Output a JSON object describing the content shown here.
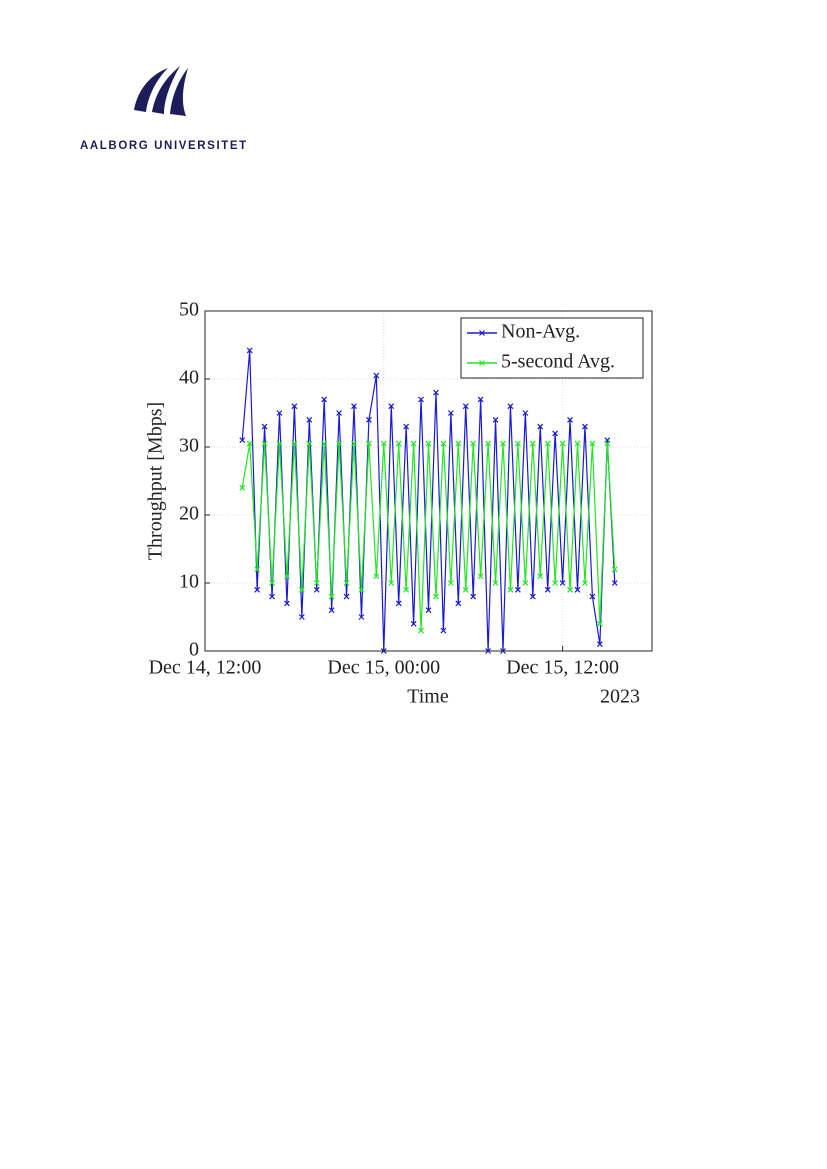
{
  "header": {
    "logo_text": "AALBORG UNIVERSITET"
  },
  "chart_data": {
    "type": "line",
    "ylabel": "Throughput [Mbps]",
    "xlabel": "Time",
    "x_year_label": "2023",
    "x": [
      "2023-12-14 14:30",
      "2023-12-14 15:00",
      "2023-12-14 15:30",
      "2023-12-14 16:00",
      "2023-12-14 16:30",
      "2023-12-14 17:00",
      "2023-12-14 17:30",
      "2023-12-14 18:00",
      "2023-12-14 18:30",
      "2023-12-14 19:00",
      "2023-12-14 19:30",
      "2023-12-14 20:00",
      "2023-12-14 20:30",
      "2023-12-14 21:00",
      "2023-12-14 21:30",
      "2023-12-14 22:00",
      "2023-12-14 22:30",
      "2023-12-14 23:00",
      "2023-12-14 23:30",
      "2023-12-15 00:00",
      "2023-12-15 00:30",
      "2023-12-15 01:00",
      "2023-12-15 01:30",
      "2023-12-15 02:00",
      "2023-12-15 02:30",
      "2023-12-15 03:00",
      "2023-12-15 03:30",
      "2023-12-15 04:00",
      "2023-12-15 04:30",
      "2023-12-15 05:00",
      "2023-12-15 05:30",
      "2023-12-15 06:00",
      "2023-12-15 06:30",
      "2023-12-15 07:00",
      "2023-12-15 07:30",
      "2023-12-15 08:00",
      "2023-12-15 08:30",
      "2023-12-15 09:00",
      "2023-12-15 09:30",
      "2023-12-15 10:00",
      "2023-12-15 10:30",
      "2023-12-15 11:00",
      "2023-12-15 11:30",
      "2023-12-15 12:00",
      "2023-12-15 12:30",
      "2023-12-15 13:00",
      "2023-12-15 13:30",
      "2023-12-15 14:00",
      "2023-12-15 14:30",
      "2023-12-15 15:00",
      "2023-12-15 15:30"
    ],
    "series": [
      {
        "name": "Non-Avg.",
        "color": "#1a1ad6",
        "values": [
          31,
          44.2,
          9,
          33,
          8,
          35,
          7,
          36,
          5,
          34,
          9,
          37,
          6,
          35,
          8,
          36,
          5,
          34,
          40.5,
          0,
          36,
          7,
          33,
          4,
          37,
          6,
          38,
          3,
          35,
          7,
          36,
          8,
          37,
          0,
          34,
          0,
          36,
          9,
          35,
          8,
          33,
          9,
          32,
          10,
          34,
          9,
          33,
          8,
          1,
          31,
          10
        ]
      },
      {
        "name": "5-second Avg.",
        "color": "#22e622",
        "values": [
          24,
          30.5,
          12,
          30.5,
          10,
          30.5,
          11,
          30.5,
          9,
          30.5,
          10,
          30.5,
          8,
          30.5,
          10,
          30.5,
          9,
          30.5,
          11,
          30.5,
          10,
          30.5,
          9,
          30.5,
          3,
          30.5,
          8,
          30.5,
          10,
          30.5,
          9,
          30.5,
          11,
          30.5,
          10,
          30.5,
          9,
          30.5,
          10,
          30.5,
          11,
          30.5,
          10,
          30.5,
          9,
          30.5,
          10,
          30.5,
          4,
          30.5,
          12
        ]
      }
    ],
    "xlim": [
      "2023-12-14 12:00",
      "2023-12-15 18:00"
    ],
    "xticks": [
      {
        "value": "2023-12-14 12:00",
        "label": "Dec 14, 12:00"
      },
      {
        "value": "2023-12-15 00:00",
        "label": "Dec 15, 00:00"
      },
      {
        "value": "2023-12-15 12:00",
        "label": "Dec 15, 12:00"
      }
    ],
    "ylim": [
      0,
      50
    ],
    "yticks": [
      0,
      10,
      20,
      30,
      40,
      50
    ],
    "grid": true,
    "legend": "upper-right"
  }
}
